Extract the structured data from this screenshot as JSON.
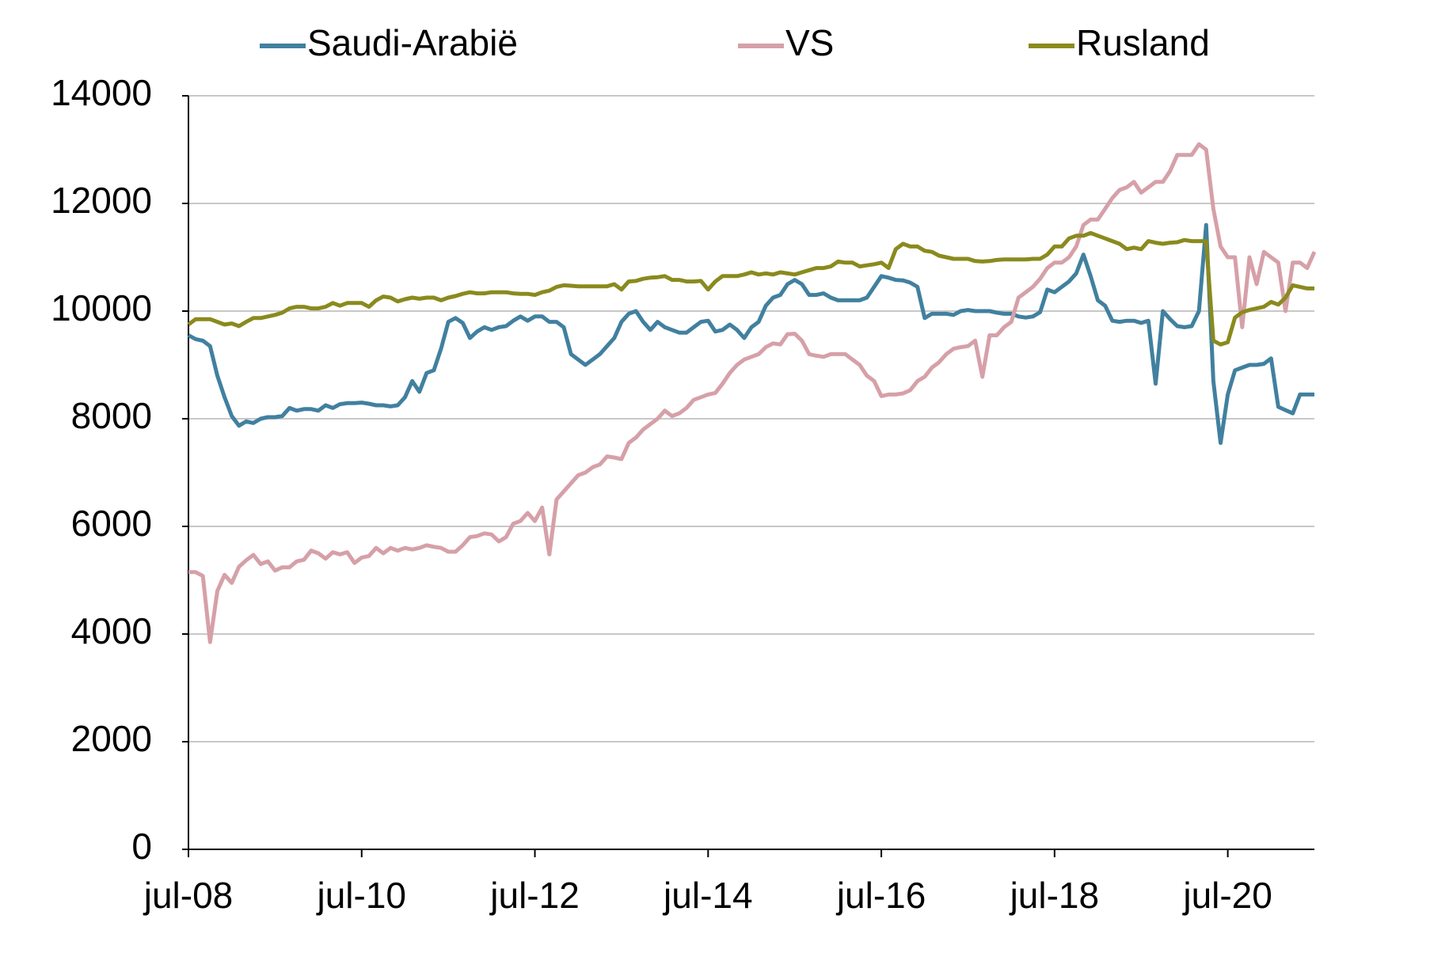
{
  "chart_data": {
    "type": "line",
    "x": [
      "jul-08",
      "aug-08",
      "sep-08",
      "okt-08",
      "nov-08",
      "dec-08",
      "jan-09",
      "feb-09",
      "mrt-09",
      "apr-09",
      "mei-09",
      "jun-09",
      "jul-09",
      "aug-09",
      "sep-09",
      "okt-09",
      "nov-09",
      "dec-09",
      "jan-10",
      "feb-10",
      "mrt-10",
      "apr-10",
      "mei-10",
      "jun-10",
      "jul-10",
      "aug-10",
      "sep-10",
      "okt-10",
      "nov-10",
      "dec-10",
      "jan-11",
      "feb-11",
      "mrt-11",
      "apr-11",
      "mei-11",
      "jun-11",
      "jul-11",
      "aug-11",
      "sep-11",
      "okt-11",
      "nov-11",
      "dec-11",
      "jan-12",
      "feb-12",
      "mrt-12",
      "apr-12",
      "mei-12",
      "jun-12",
      "jul-12",
      "aug-12",
      "sep-12",
      "okt-12",
      "nov-12",
      "dec-12",
      "jan-13",
      "feb-13",
      "mrt-13",
      "apr-13",
      "mei-13",
      "jun-13",
      "jul-13",
      "aug-13",
      "sep-13",
      "okt-13",
      "nov-13",
      "dec-13",
      "jan-14",
      "feb-14",
      "mrt-14",
      "apr-14",
      "mei-14",
      "jun-14",
      "jul-14",
      "aug-14",
      "sep-14",
      "okt-14",
      "nov-14",
      "dec-14",
      "jan-15",
      "feb-15",
      "mrt-15",
      "apr-15",
      "mei-15",
      "jun-15",
      "jul-15",
      "aug-15",
      "sep-15",
      "okt-15",
      "nov-15",
      "dec-15",
      "jan-16",
      "feb-16",
      "mrt-16",
      "apr-16",
      "mei-16",
      "jun-16",
      "jul-16",
      "aug-16",
      "sep-16",
      "okt-16",
      "nov-16",
      "dec-16",
      "jan-17",
      "feb-17",
      "mrt-17",
      "apr-17",
      "mei-17",
      "jun-17",
      "jul-17",
      "aug-17",
      "sep-17",
      "okt-17",
      "nov-17",
      "dec-17",
      "jan-18",
      "feb-18",
      "mrt-18",
      "apr-18",
      "mei-18",
      "jun-18",
      "jul-18",
      "aug-18",
      "sep-18",
      "okt-18",
      "nov-18",
      "dec-18",
      "jan-19",
      "feb-19",
      "mrt-19",
      "apr-19",
      "mei-19",
      "jun-19",
      "jul-19",
      "aug-19",
      "sep-19",
      "okt-19",
      "nov-19",
      "dec-19",
      "jan-20",
      "feb-20",
      "mrt-20",
      "apr-20",
      "mei-20",
      "jun-20",
      "jul-20",
      "aug-20",
      "sep-20",
      "okt-20",
      "nov-20",
      "dec-20",
      "jan-21",
      "feb-21",
      "mrt-21",
      "apr-21",
      "mei-21",
      "jun-21",
      "jul-21"
    ],
    "xticks": [
      "jul-08",
      "jul-10",
      "jul-12",
      "jul-14",
      "jul-16",
      "jul-18",
      "jul-20"
    ],
    "series": [
      {
        "name": "Saudi-Arabië",
        "color": "#41809f",
        "values": [
          9550,
          9480,
          9450,
          9350,
          8800,
          8400,
          8050,
          7870,
          7950,
          7920,
          8000,
          8030,
          8030,
          8050,
          8200,
          8150,
          8180,
          8180,
          8150,
          8250,
          8200,
          8270,
          8290,
          8290,
          8300,
          8280,
          8250,
          8250,
          8230,
          8250,
          8400,
          8700,
          8500,
          8850,
          8900,
          9300,
          9800,
          9870,
          9780,
          9500,
          9620,
          9700,
          9650,
          9700,
          9720,
          9820,
          9900,
          9820,
          9900,
          9900,
          9800,
          9800,
          9700,
          9200,
          9100,
          9000,
          9100,
          9200,
          9350,
          9500,
          9800,
          9950,
          10000,
          9800,
          9650,
          9800,
          9700,
          9650,
          9600,
          9600,
          9700,
          9800,
          9820,
          9620,
          9650,
          9750,
          9650,
          9500,
          9700,
          9800,
          10100,
          10250,
          10300,
          10500,
          10580,
          10500,
          10300,
          10300,
          10330,
          10250,
          10200,
          10200,
          10200,
          10200,
          10250,
          10450,
          10650,
          10620,
          10580,
          10570,
          10530,
          10450,
          9870,
          9950,
          9950,
          9950,
          9930,
          10000,
          10020,
          10000,
          10000,
          10000,
          9970,
          9950,
          9950,
          9900,
          9880,
          9900,
          9980,
          10400,
          10350,
          10450,
          10550,
          10700,
          11050,
          10650,
          10200,
          10100,
          9820,
          9800,
          9820,
          9820,
          9780,
          9820,
          8650,
          10000,
          9850,
          9720,
          9700,
          9720,
          10000,
          11600,
          8700,
          7550,
          8450,
          8900,
          8950,
          9000,
          9000,
          9020,
          9120,
          8220,
          8160,
          8100,
          8450,
          8450,
          8450
        ]
      },
      {
        "name": "VS",
        "color": "#d6a0a8",
        "values": [
          5150,
          5150,
          5080,
          3850,
          4800,
          5100,
          4950,
          5250,
          5370,
          5470,
          5300,
          5350,
          5180,
          5240,
          5240,
          5350,
          5380,
          5550,
          5500,
          5400,
          5520,
          5480,
          5520,
          5320,
          5420,
          5450,
          5600,
          5500,
          5600,
          5550,
          5600,
          5570,
          5600,
          5650,
          5620,
          5600,
          5530,
          5530,
          5650,
          5800,
          5820,
          5870,
          5850,
          5720,
          5800,
          6050,
          6100,
          6250,
          6100,
          6350,
          5480,
          6500,
          6650,
          6800,
          6950,
          7000,
          7100,
          7150,
          7300,
          7280,
          7250,
          7550,
          7650,
          7800,
          7900,
          8000,
          8150,
          8050,
          8100,
          8200,
          8350,
          8400,
          8450,
          8480,
          8650,
          8850,
          9000,
          9100,
          9150,
          9200,
          9330,
          9400,
          9380,
          9570,
          9580,
          9450,
          9200,
          9170,
          9150,
          9200,
          9200,
          9200,
          9100,
          9000,
          8800,
          8700,
          8420,
          8450,
          8450,
          8470,
          8530,
          8700,
          8780,
          8950,
          9050,
          9200,
          9300,
          9330,
          9350,
          9450,
          8780,
          9550,
          9550,
          9700,
          9800,
          10250,
          10350,
          10450,
          10600,
          10800,
          10900,
          10900,
          11000,
          11200,
          11600,
          11700,
          11700,
          11900,
          12100,
          12250,
          12300,
          12400,
          12200,
          12300,
          12400,
          12400,
          12600,
          12900,
          12900,
          12900,
          13100,
          13000,
          11900,
          11200,
          11000,
          11000,
          9700,
          11000,
          10500,
          11100,
          11000,
          10900,
          10000,
          10900,
          10900,
          10800,
          11100
        ]
      },
      {
        "name": "Rusland",
        "color": "#8a8a1e",
        "values": [
          9750,
          9850,
          9850,
          9850,
          9800,
          9750,
          9770,
          9720,
          9800,
          9870,
          9870,
          9900,
          9930,
          9970,
          10050,
          10080,
          10080,
          10050,
          10050,
          10080,
          10150,
          10100,
          10150,
          10150,
          10150,
          10080,
          10200,
          10270,
          10250,
          10180,
          10220,
          10250,
          10230,
          10250,
          10250,
          10200,
          10250,
          10280,
          10320,
          10350,
          10330,
          10330,
          10350,
          10350,
          10350,
          10330,
          10320,
          10320,
          10300,
          10350,
          10380,
          10450,
          10480,
          10470,
          10460,
          10460,
          10460,
          10460,
          10460,
          10500,
          10400,
          10550,
          10560,
          10600,
          10620,
          10630,
          10650,
          10580,
          10580,
          10550,
          10550,
          10560,
          10400,
          10550,
          10650,
          10650,
          10650,
          10680,
          10720,
          10680,
          10700,
          10680,
          10720,
          10700,
          10680,
          10720,
          10760,
          10800,
          10800,
          10830,
          10920,
          10900,
          10900,
          10830,
          10850,
          10870,
          10900,
          10800,
          11150,
          11250,
          11200,
          11200,
          11120,
          11100,
          11030,
          11000,
          10970,
          10970,
          10970,
          10930,
          10920,
          10930,
          10950,
          10960,
          10960,
          10960,
          10960,
          10970,
          10970,
          11050,
          11200,
          11200,
          11350,
          11400,
          11400,
          11450,
          11400,
          11350,
          11300,
          11250,
          11150,
          11180,
          11150,
          11300,
          11270,
          11250,
          11270,
          11280,
          11320,
          11300,
          11300,
          11300,
          9450,
          9380,
          9420,
          9880,
          9980,
          10020,
          10050,
          10080,
          10170,
          10120,
          10250,
          10480,
          10450,
          10420,
          10420
        ]
      }
    ],
    "ylim": [
      0,
      14000
    ],
    "yticks": [
      0,
      2000,
      4000,
      6000,
      8000,
      10000,
      12000,
      14000
    ],
    "grid": true,
    "legend": "top"
  }
}
